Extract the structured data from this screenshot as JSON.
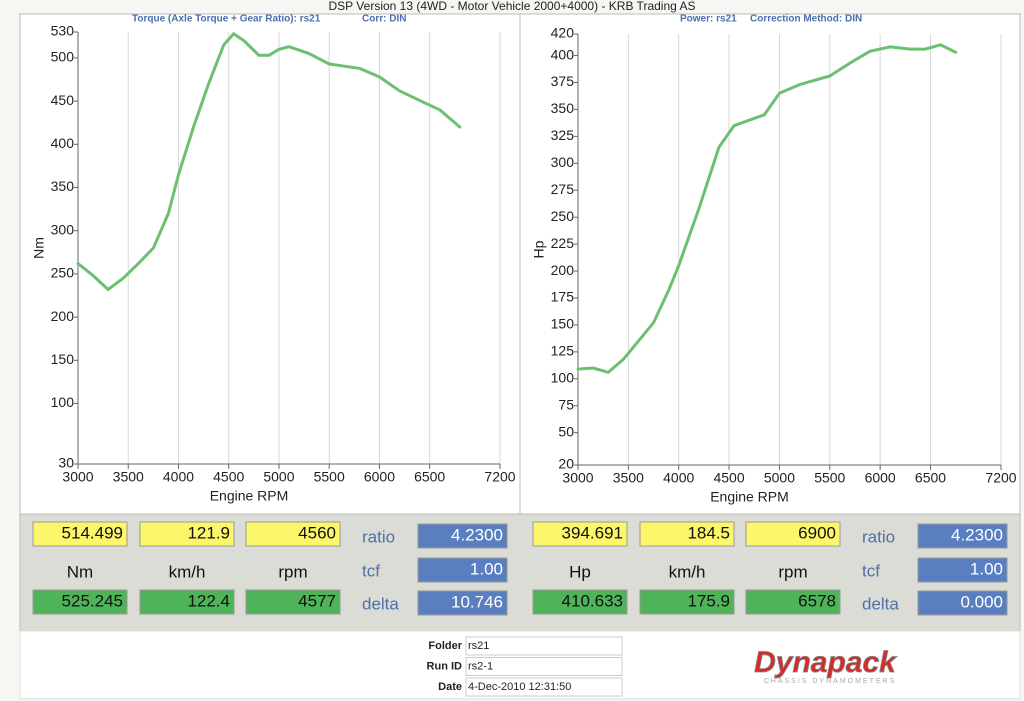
{
  "header": {
    "title": "DSP Version 13 (4WD - Motor Vehicle 2000+4000) - KRB Trading AS"
  },
  "chart_data": [
    {
      "type": "line",
      "subtitle": "Torque (Axle Torque + Gear Ratio): rs21",
      "correction": "Corr: DIN",
      "x_label": "Engine RPM",
      "y_label": "Nm",
      "x": [
        3000,
        3150,
        3300,
        3450,
        3600,
        3750,
        3900,
        4000,
        4150,
        4300,
        4450,
        4550,
        4650,
        4800,
        4900,
        5000,
        5100,
        5300,
        5500,
        5800,
        6000,
        6200,
        6450,
        6600,
        6800
      ],
      "series": [
        {
          "color": "#6cc070",
          "values": [
            262,
            248,
            232,
            245,
            262,
            280,
            320,
            365,
            420,
            470,
            515,
            528,
            520,
            503,
            503,
            510,
            513,
            505,
            493,
            488,
            478,
            462,
            448,
            440,
            420
          ]
        }
      ],
      "xlim": [
        3000,
        7200
      ],
      "xticks": [
        3000,
        3500,
        4000,
        4500,
        5000,
        5500,
        6000,
        6500,
        7200
      ],
      "ylim": [
        30,
        530
      ],
      "yticks": [
        30,
        100,
        150,
        200,
        250,
        300,
        350,
        400,
        450,
        500,
        530
      ],
      "grid": true
    },
    {
      "type": "line",
      "subtitle": "Power: rs21",
      "correction": "Correction Method: DIN",
      "x_label": "Engine RPM",
      "y_label": "Hp",
      "x": [
        3000,
        3150,
        3300,
        3450,
        3600,
        3750,
        3900,
        4000,
        4200,
        4400,
        4550,
        4700,
        4850,
        5000,
        5200,
        5500,
        5700,
        5900,
        6100,
        6300,
        6450,
        6600,
        6750
      ],
      "series": [
        {
          "color": "#6cc070",
          "values": [
            109,
            110,
            106,
            118,
            135,
            152,
            182,
            205,
            258,
            315,
            335,
            340,
            345,
            365,
            373,
            381,
            393,
            404,
            408,
            406,
            406,
            410,
            403
          ]
        }
      ],
      "xlim": [
        3000,
        7200
      ],
      "xticks": [
        3000,
        3500,
        4000,
        4500,
        5000,
        5500,
        6000,
        6500,
        7200
      ],
      "ylim": [
        20,
        420
      ],
      "yticks": [
        20,
        50,
        75,
        100,
        125,
        150,
        175,
        200,
        225,
        250,
        275,
        300,
        325,
        350,
        375,
        400,
        420
      ],
      "grid": true
    }
  ],
  "readouts": [
    {
      "yellow": [
        "514.499",
        "121.9",
        "4560"
      ],
      "units": [
        "Nm",
        "km/h",
        "rpm"
      ],
      "green": [
        "525.245",
        "122.4",
        "4577"
      ],
      "labels": [
        "ratio",
        "tcf",
        "delta"
      ],
      "blue": [
        "4.2300",
        "1.00",
        "10.746"
      ]
    },
    {
      "yellow": [
        "394.691",
        "184.5",
        "6900"
      ],
      "units": [
        "Hp",
        "km/h",
        "rpm"
      ],
      "green": [
        "410.633",
        "175.9",
        "6578"
      ],
      "labels": [
        "ratio",
        "tcf",
        "delta"
      ],
      "blue": [
        "4.2300",
        "1.00",
        "0.000"
      ]
    }
  ],
  "footer": {
    "fields": [
      {
        "label": "Folder",
        "value": "rs21"
      },
      {
        "label": "Run ID",
        "value": "rs2-1"
      },
      {
        "label": "Date",
        "value": "4-Dec-2010 12:31:50"
      }
    ],
    "logo": "Dynapack",
    "logo_tagline": "CHASSIS DYNAMOMETERS"
  }
}
